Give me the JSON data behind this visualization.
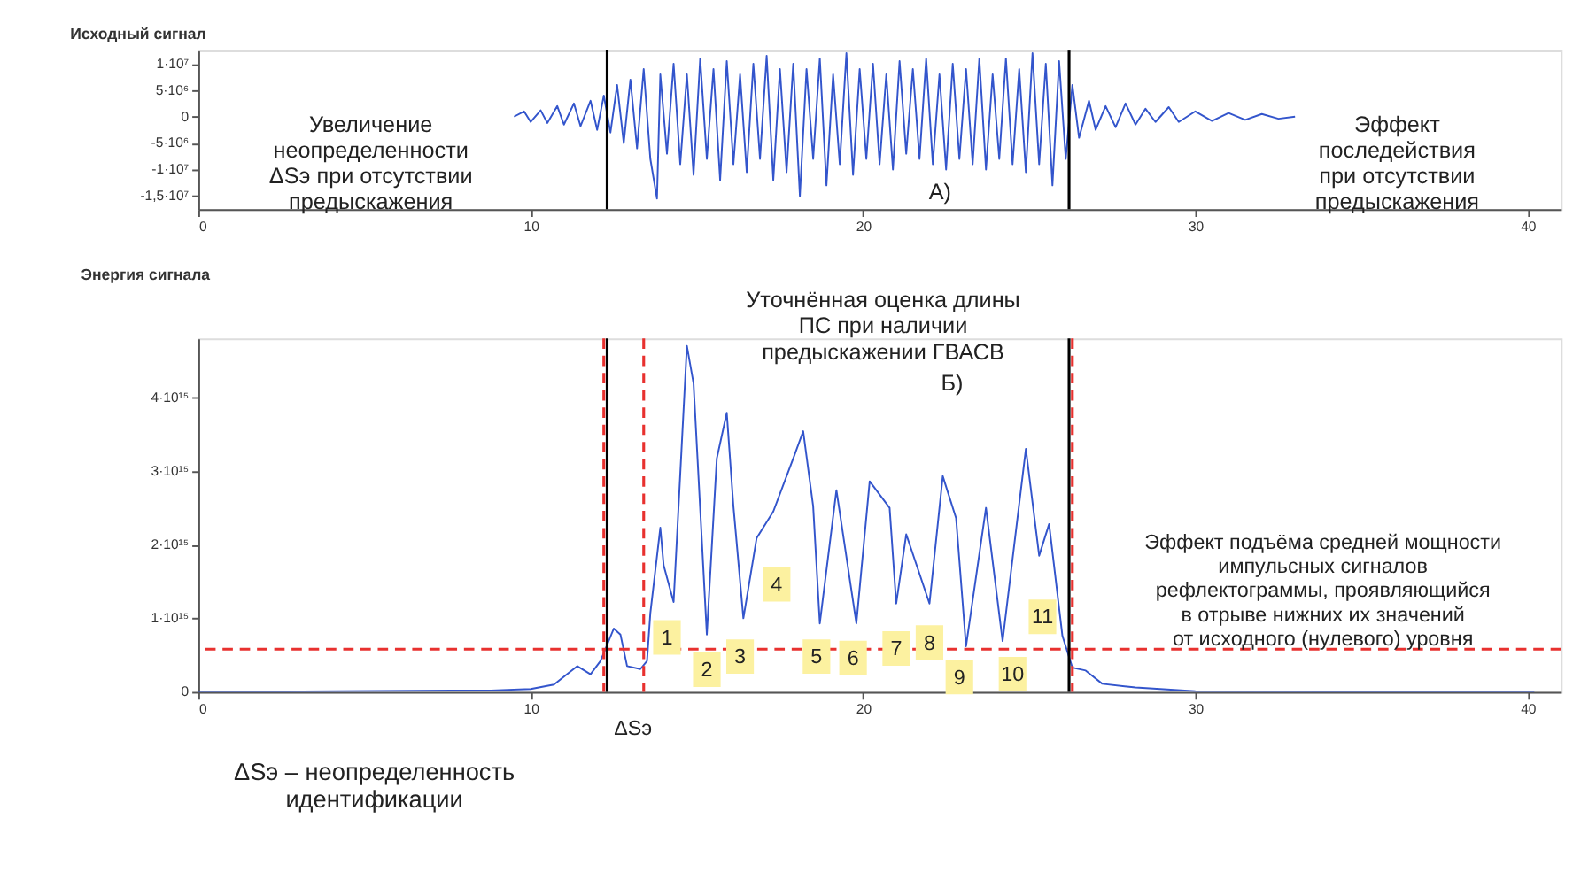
{
  "chart_data": [
    {
      "type": "line",
      "title": "Исходный сигнал",
      "color": "#3355cc",
      "grid": false,
      "x": [
        9.5,
        9.8,
        10.0,
        10.3,
        10.5,
        10.8,
        11.0,
        11.3,
        11.5,
        11.8,
        12.0,
        12.2,
        12.4,
        12.6,
        12.8,
        13.0,
        13.2,
        13.4,
        13.6,
        13.8,
        13.9,
        14.1,
        14.3,
        14.5,
        14.7,
        14.9,
        15.1,
        15.3,
        15.5,
        15.7,
        15.9,
        16.1,
        16.3,
        16.5,
        16.7,
        16.9,
        17.1,
        17.3,
        17.5,
        17.7,
        17.9,
        18.1,
        18.3,
        18.5,
        18.7,
        18.9,
        19.1,
        19.3,
        19.5,
        19.7,
        19.9,
        20.1,
        20.3,
        20.5,
        20.7,
        20.9,
        21.1,
        21.3,
        21.5,
        21.7,
        21.9,
        22.1,
        22.3,
        22.5,
        22.7,
        22.9,
        23.1,
        23.3,
        23.5,
        23.7,
        23.9,
        24.1,
        24.3,
        24.5,
        24.7,
        24.9,
        25.1,
        25.3,
        25.5,
        25.7,
        25.9,
        26.1,
        26.3,
        26.5,
        26.8,
        27.0,
        27.3,
        27.6,
        27.9,
        28.2,
        28.5,
        28.8,
        29.2,
        29.5,
        30.0,
        30.5,
        31.0,
        31.5,
        32.0,
        32.5,
        33.0
      ],
      "values": [
        0,
        1000000,
        -1000000,
        1200000,
        -1200000,
        2000000,
        -1500000,
        2500000,
        -1800000,
        3000000,
        -2500000,
        4000000,
        -3000000,
        6000000,
        -5000000,
        7000000,
        -6000000,
        9000000,
        -8000000,
        -15500000,
        8000000,
        -7000000,
        10000000,
        -9000000,
        8000000,
        -11000000,
        11000000,
        -8000000,
        9000000,
        -12000000,
        10500000,
        -9000000,
        8000000,
        -10500000,
        10000000,
        -8000000,
        11500000,
        -12000000,
        9000000,
        -10500000,
        10000000,
        -15000000,
        9000000,
        -8000000,
        11000000,
        -13000000,
        8000000,
        -9000000,
        12000000,
        -11000000,
        9000000,
        -8000000,
        10000000,
        -9000000,
        8000000,
        -10000000,
        10500000,
        -7000000,
        9000000,
        -8000000,
        11000000,
        -9000000,
        8000000,
        -10000000,
        10000000,
        -8000000,
        9000000,
        -9000000,
        11000000,
        -10000000,
        8000000,
        -8000000,
        11000000,
        -9000000,
        9000000,
        -10500000,
        12000000,
        -9000000,
        10000000,
        -13000000,
        10500000,
        -8000000,
        6000000,
        -4000000,
        3000000,
        -2500000,
        2000000,
        -2000000,
        2500000,
        -1500000,
        1500000,
        -1000000,
        1800000,
        -1000000,
        1000000,
        -800000,
        700000,
        -600000,
        500000,
        -400000,
        0
      ],
      "xlim": [
        0,
        41
      ],
      "xticks": [
        0,
        10,
        20,
        30,
        40
      ],
      "ylim": [
        -17500000,
        12500000
      ],
      "yticks": [
        {
          "value": 10000000,
          "label": "1·10⁷"
        },
        {
          "value": 5000000,
          "label": "5·10⁶"
        },
        0,
        {
          "value": -5000000,
          "label": "-5·10⁶"
        },
        {
          "value": -10000000,
          "label": "-1·10⁷"
        },
        {
          "value": -15000000,
          "label": "-1,5·10⁷"
        }
      ],
      "ref_lines": [
        {
          "axis": "x",
          "value": 12.3,
          "color": "#000000",
          "line_style": "solid"
        },
        {
          "axis": "x",
          "value": 26.2,
          "color": "#000000",
          "line_style": "solid"
        }
      ],
      "annotations": [
        "Увеличение\nнеопределенности\nΔSэ при отсутствии\nпредыскажения",
        "A)",
        "Эффект\nпоследействия\nпри отсутствии\nпредыскажения"
      ]
    },
    {
      "type": "line",
      "title": "Энергия сигнала",
      "color": "#3355cc",
      "grid": false,
      "x": [
        0,
        8.8,
        10.0,
        10.7,
        11.4,
        11.8,
        12.1,
        12.5,
        12.7,
        12.9,
        13.3,
        13.5,
        13.6,
        13.9,
        14.0,
        14.3,
        14.4,
        14.7,
        14.9,
        15.3,
        15.6,
        15.9,
        16.1,
        16.4,
        16.8,
        17.3,
        17.9,
        18.2,
        18.5,
        18.7,
        19.2,
        19.8,
        20.2,
        20.8,
        21.0,
        21.3,
        22.0,
        22.4,
        22.8,
        23.1,
        23.7,
        24.2,
        24.9,
        25.3,
        25.6,
        26.0,
        26.3,
        26.7,
        27.2,
        28.2,
        30.0,
        40.2
      ],
      "values": [
        0,
        20000000000000,
        40000000000000,
        100000000000000,
        350000000000000,
        240000000000000,
        420000000000000,
        860000000000000,
        780000000000000,
        350000000000000,
        310000000000000,
        420000000000000,
        1070000000000000,
        2230000000000000,
        1720000000000000,
        1220000000000000,
        2090000000000000,
        4700000000000000,
        4190000000000000,
        780000000000000,
        3170000000000000,
        3790000000000000,
        2520000000000000,
        1000000000000000,
        2090000000000000,
        2450000000000000,
        3170000000000000,
        3540000000000000,
        2520000000000000,
        930000000000000,
        2740000000000000,
        930000000000000,
        2860000000000000,
        2500000000000000,
        1200000000000000,
        2140000000000000,
        1200000000000000,
        2930000000000000,
        2360000000000000,
        620000000000000,
        2500000000000000,
        690000000000000,
        3300000000000000,
        1850000000000000,
        2280000000000000,
        760000000000000,
        330000000000000,
        290000000000000,
        110000000000000,
        60000000000000,
        10000000000000,
        0
      ],
      "xlim": [
        0,
        41
      ],
      "xticks": [
        0,
        10,
        20,
        30,
        40
      ],
      "ylim": [
        0,
        4800000000000000
      ],
      "yticks": [
        0,
        {
          "value": 1000000000000000,
          "label": "1·10¹⁵"
        },
        {
          "value": 2000000000000000,
          "label": "2·10¹⁵"
        },
        {
          "value": 3000000000000000,
          "label": "3·10¹⁵"
        },
        {
          "value": 4000000000000000,
          "label": "4·10¹⁵"
        }
      ],
      "ref_lines": [
        {
          "axis": "y",
          "value": 580000000000000,
          "color": "#e8312f",
          "line_style": "dashed"
        },
        {
          "axis": "x",
          "value": 12.3,
          "color": "#000000",
          "line_style": "solid"
        },
        {
          "axis": "x",
          "value": 26.2,
          "color": "#000000",
          "line_style": "solid"
        },
        {
          "axis": "x",
          "value": 12.2,
          "color": "#e8312f",
          "line_style": "dashed"
        },
        {
          "axis": "x",
          "value": 13.4,
          "color": "#e8312f",
          "line_style": "dashed"
        },
        {
          "axis": "x",
          "value": 26.3,
          "color": "#e8312f",
          "line_style": "dashed"
        }
      ],
      "annotations": [
        "Уточнённая оценка длины\nПС при наличии\nпредыскажении ГВАСВ",
        "Б)",
        "Эффект подъёма средней мощности\nимпульсных сигналов\nрефлектограммы, проявляющийся\nв отрыве нижних их значений\nот исходного (нулевого) уровня",
        "ΔSэ",
        "ΔSэ – неопределенность\nидентификации",
        {
          "text": "1",
          "x": 14.1,
          "y": 740000000000000
        },
        {
          "text": "2",
          "x": 15.3,
          "y": 300000000000000
        },
        {
          "text": "3",
          "x": 16.3,
          "y": 480000000000000
        },
        {
          "text": "4",
          "x": 17.4,
          "y": 1460000000000000
        },
        {
          "text": "5",
          "x": 18.6,
          "y": 480000000000000
        },
        {
          "text": "6",
          "x": 19.7,
          "y": 460000000000000
        },
        {
          "text": "7",
          "x": 21.0,
          "y": 590000000000000
        },
        {
          "text": "8",
          "x": 22.0,
          "y": 670000000000000
        },
        {
          "text": "9",
          "x": 22.9,
          "y": 200000000000000
        },
        {
          "text": "10",
          "x": 24.5,
          "y": 240000000000000
        },
        {
          "text": "11",
          "x": 25.4,
          "y": 1020000000000000
        }
      ]
    }
  ]
}
